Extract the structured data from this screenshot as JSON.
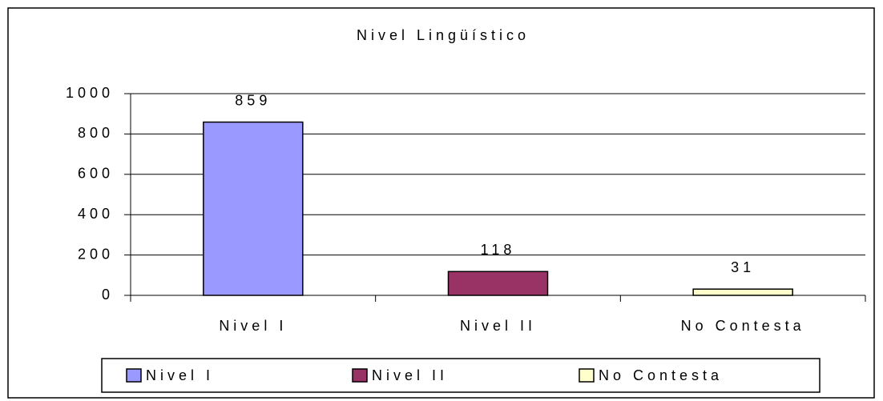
{
  "chart_data": {
    "type": "bar",
    "title": "Nivel Lingüístico",
    "categories": [
      "Nivel I",
      "Nivel II",
      "No Contesta"
    ],
    "values": [
      859,
      118,
      31
    ],
    "colors": [
      "#9999ff",
      "#993366",
      "#ffffcc"
    ],
    "ylim": [
      0,
      1000
    ],
    "yticks": [
      0,
      200,
      400,
      600,
      800,
      1000
    ],
    "grid": true,
    "legend": "bottom"
  }
}
